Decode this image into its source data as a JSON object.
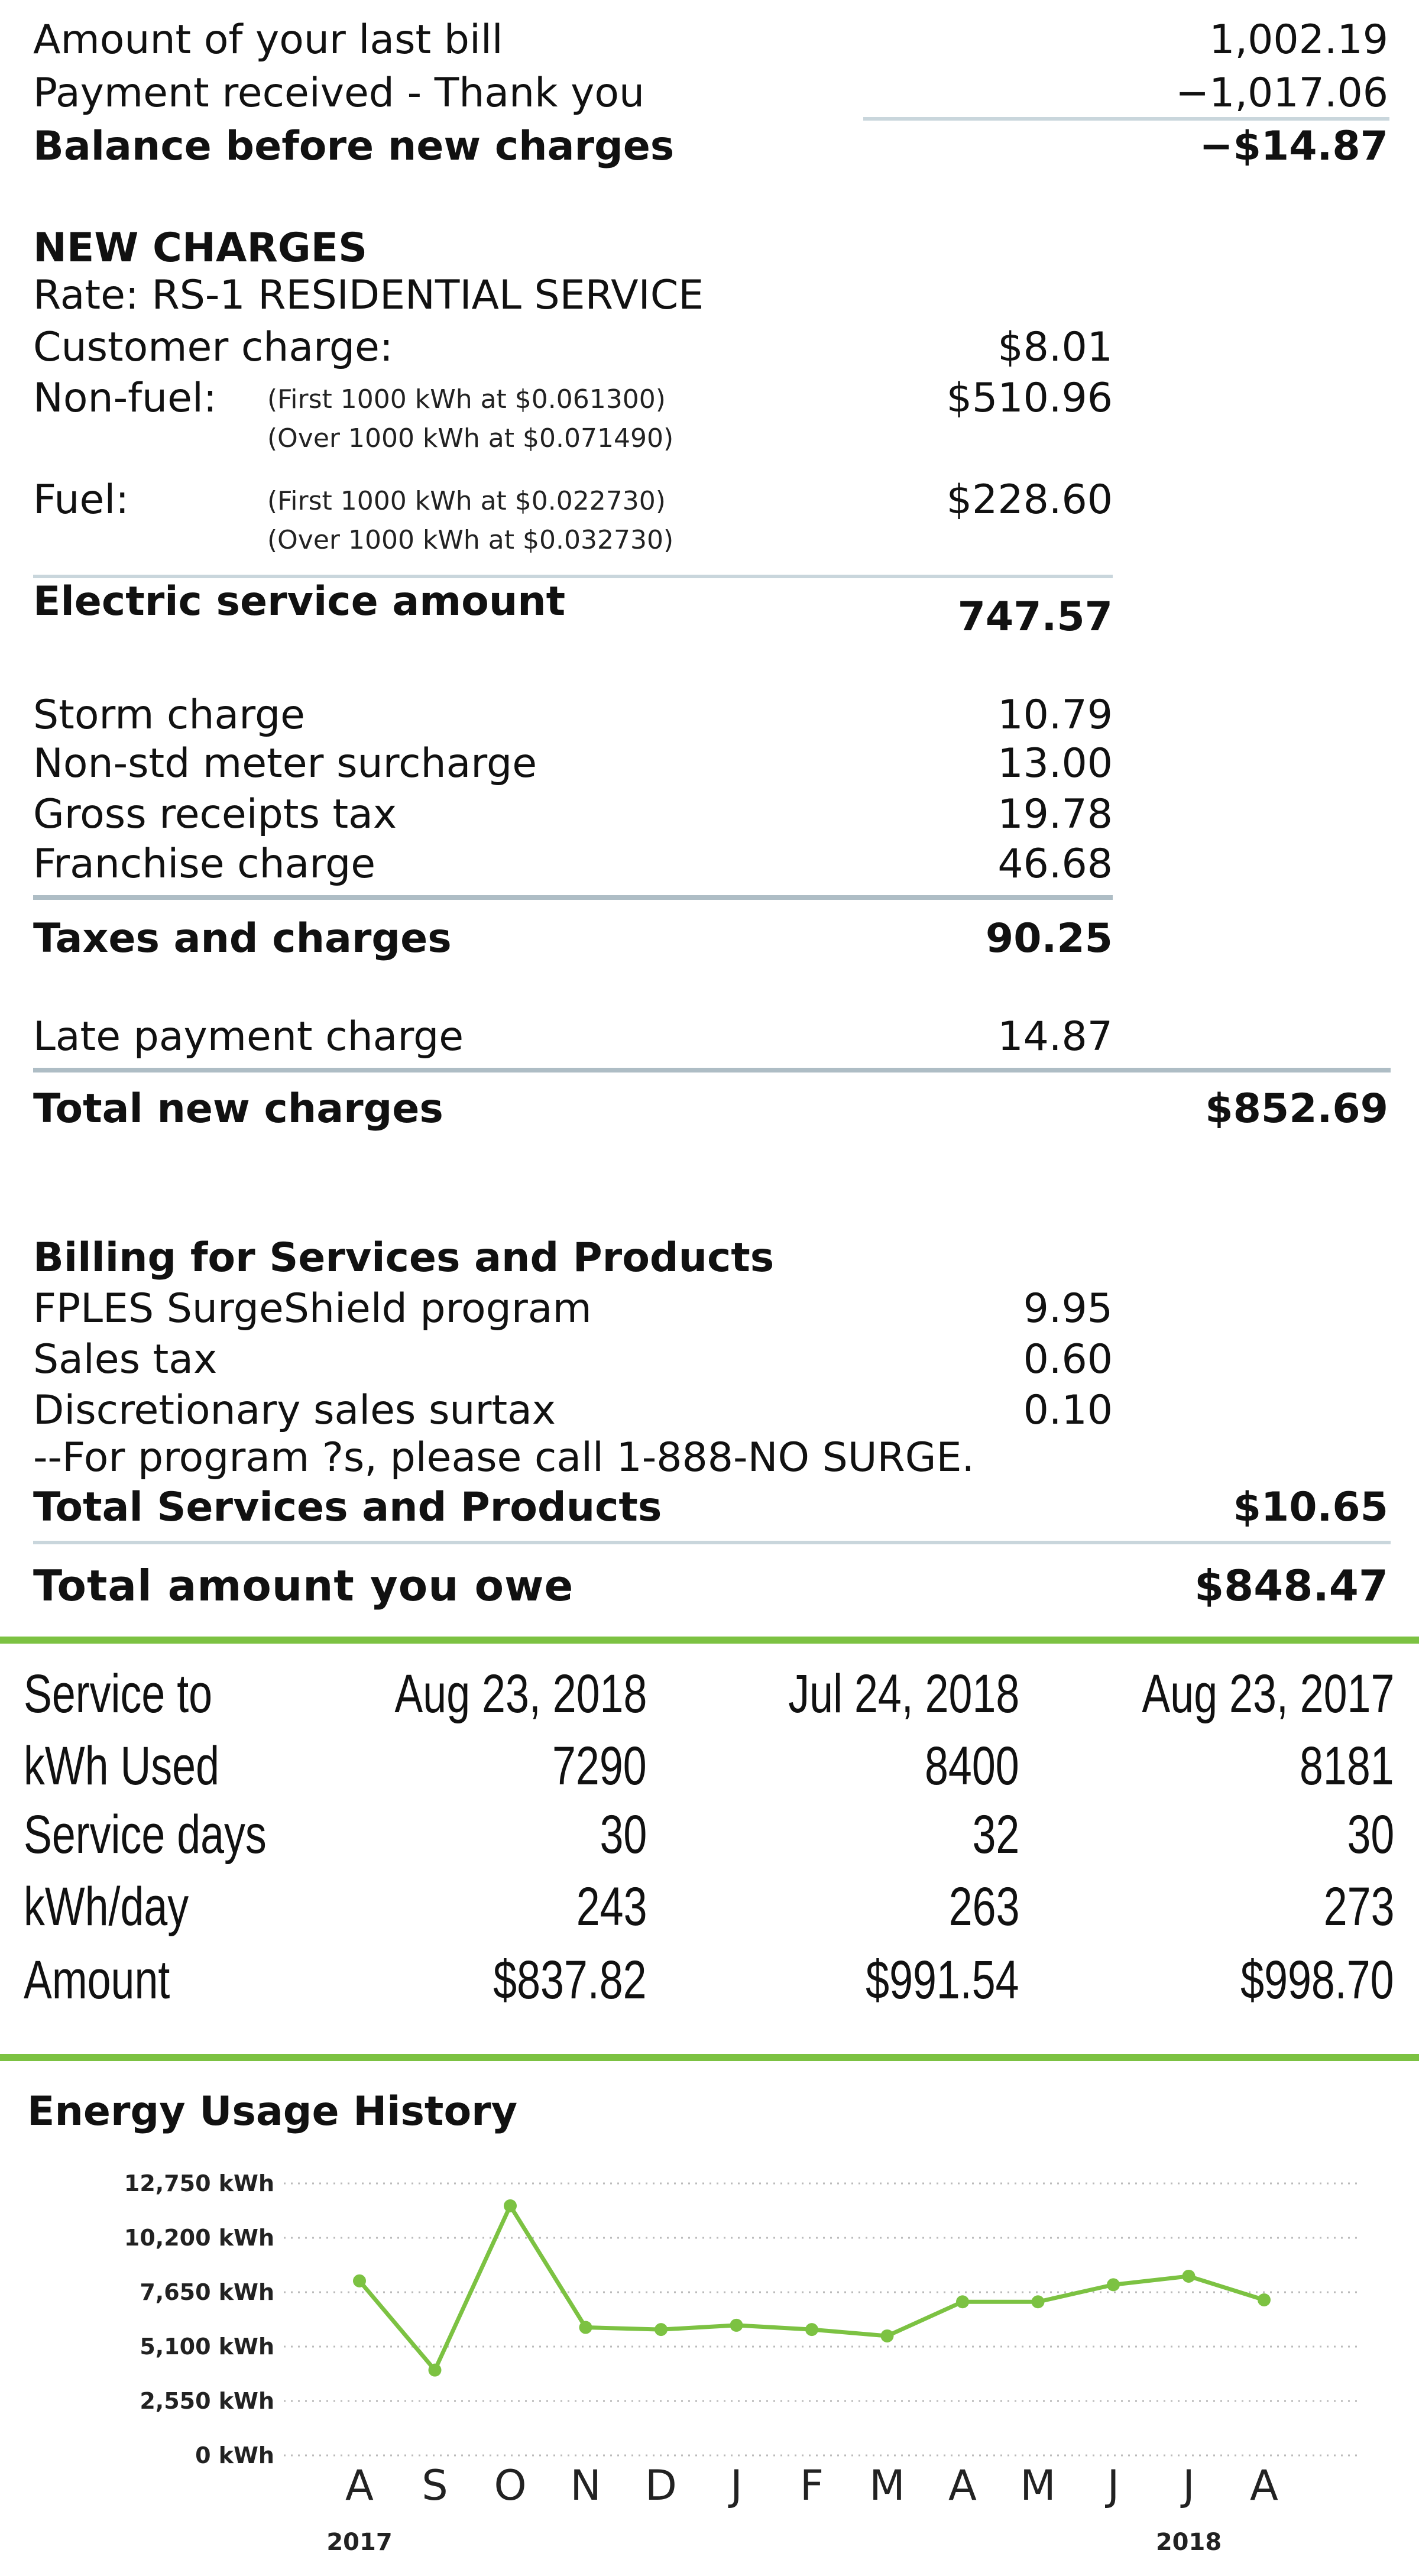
{
  "summary": {
    "last_bill": {
      "label": "Amount of your last bill",
      "value": "1,002.19"
    },
    "payment": {
      "label": "Payment received - Thank you",
      "value": "−1,017.06"
    },
    "balance": {
      "label": "Balance before new charges",
      "value": "−$14.87"
    }
  },
  "new_charges": {
    "heading": "NEW CHARGES",
    "rate": "Rate: RS-1 RESIDENTIAL SERVICE",
    "customer": {
      "label": "Customer charge:",
      "value": "$8.01"
    },
    "nonfuel": {
      "label": "Non-fuel:",
      "note1": "(First 1000 kWh at $0.061300)",
      "note2": "(Over 1000 kWh at $0.071490)",
      "value": "$510.96"
    },
    "fuel": {
      "label": "Fuel:",
      "note1": "(First 1000 kWh at $0.022730)",
      "note2": "(Over 1000 kWh at $0.032730)",
      "value": "$228.60"
    },
    "electric": {
      "label": "Electric service amount",
      "value": "747.57"
    },
    "storm": {
      "label": "Storm charge",
      "value": "10.79"
    },
    "meter": {
      "label": "Non-std meter surcharge",
      "value": "13.00"
    },
    "gross": {
      "label": "Gross receipts tax",
      "value": "19.78"
    },
    "franchise": {
      "label": "Franchise charge",
      "value": "46.68"
    },
    "taxes": {
      "label": "Taxes and charges",
      "value": "90.25"
    },
    "late": {
      "label": "Late payment charge",
      "value": "14.87"
    },
    "total": {
      "label": "Total new charges",
      "value": "$852.69"
    }
  },
  "services": {
    "heading": "Billing for Services and Products",
    "surge": {
      "label": "FPLES SurgeShield program",
      "value": "9.95"
    },
    "sales": {
      "label": "Sales tax",
      "value": "0.60"
    },
    "surtax": {
      "label": "Discretionary sales surtax",
      "value": "0.10"
    },
    "note": "--For program ?s, please call 1-888-NO SURGE.",
    "total": {
      "label": "Total Services and Products",
      "value": "$10.65"
    }
  },
  "total_owe": {
    "label": "Total amount you owe",
    "value": "$848.47"
  },
  "usage_table": {
    "rows": [
      {
        "label": "Service to",
        "c1": "Aug 23, 2018",
        "c2": "Jul 24, 2018",
        "c3": "Aug 23, 2017"
      },
      {
        "label": "kWh Used",
        "c1": "7290",
        "c2": "8400",
        "c3": "8181"
      },
      {
        "label": "Service days",
        "c1": "30",
        "c2": "32",
        "c3": "30"
      },
      {
        "label": "kWh/day",
        "c1": "243",
        "c2": "263",
        "c3": "273"
      },
      {
        "label": "Amount",
        "c1": "$837.82",
        "c2": "$991.54",
        "c3": "$998.70"
      }
    ]
  },
  "chart_data": {
    "type": "line",
    "title": "Energy Usage History",
    "categories": [
      "A",
      "S",
      "O",
      "N",
      "D",
      "J",
      "F",
      "M",
      "A",
      "M",
      "J",
      "J",
      "A"
    ],
    "year_labels": [
      {
        "index": 0,
        "label": "2017"
      },
      {
        "index": 11,
        "label": "2018"
      }
    ],
    "y_ticks": [
      "0 kWh",
      "2,550 kWh",
      "5,100 kWh",
      "7,650 kWh",
      "10,200 kWh",
      "12,750 kWh"
    ],
    "y_tick_values": [
      0,
      2550,
      5100,
      7650,
      10200,
      12750
    ],
    "ylim": [
      0,
      12750
    ],
    "grid": true,
    "series": [
      {
        "values": [
          8181,
          4000,
          11700,
          6000,
          5900,
          6100,
          5900,
          5600,
          7200,
          7200,
          8000,
          8400,
          7290
        ]
      }
    ],
    "colors": {
      "line": "#7cc242",
      "grid": "#bbbbbb"
    }
  }
}
